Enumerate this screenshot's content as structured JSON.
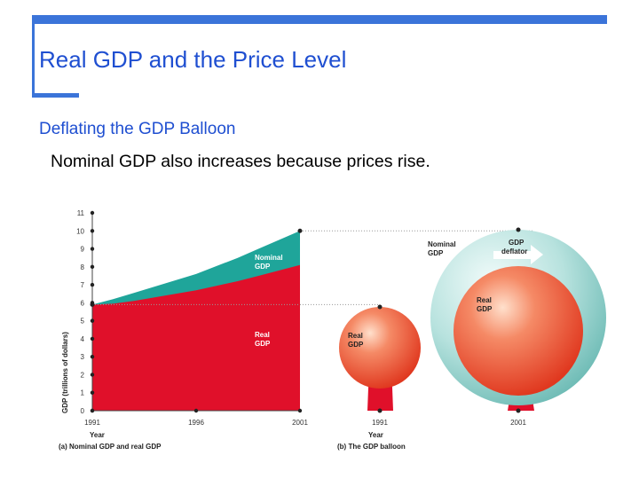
{
  "slide": {
    "title": "Real GDP and the Price Level",
    "subheading": "Deflating the GDP Balloon",
    "bullet": "Nominal GDP also increases because prices rise."
  },
  "colors": {
    "accent": "#3b74d9",
    "title_text": "#1f4fd1",
    "real_gdp": "#e0102a",
    "nominal_gdp": "#1fa59a",
    "balloon_real": "#f06a50",
    "balloon_outer": "#9ed3cf"
  },
  "chart_data": [
    {
      "type": "area",
      "caption": "(a) Nominal GDP and real GDP",
      "xlabel": "Year",
      "ylabel": "GDP (trillions of dollars)",
      "x_ticks": [
        "1991",
        "1996",
        "2001"
      ],
      "y_ticks": [
        "0",
        "1",
        "2",
        "3",
        "4",
        "5",
        "6",
        "7",
        "8",
        "9",
        "10",
        "11"
      ],
      "ylim": [
        0,
        11
      ],
      "xlim": [
        1991,
        2001
      ],
      "x": [
        1991,
        1992,
        1993,
        1994,
        1995,
        1996,
        1997,
        1998,
        1999,
        2000,
        2001
      ],
      "series": [
        {
          "name": "Real GDP",
          "values": [
            5.9,
            5.95,
            6.1,
            6.3,
            6.5,
            6.7,
            6.95,
            7.2,
            7.5,
            7.8,
            8.1
          ]
        },
        {
          "name": "Nominal GDP",
          "values": [
            5.9,
            6.2,
            6.55,
            6.9,
            7.25,
            7.6,
            8.05,
            8.5,
            9.0,
            9.5,
            10.0
          ]
        }
      ]
    },
    {
      "type": "other",
      "caption": "(b) The GDP balloon",
      "xlabel": "Year",
      "x_ticks": [
        "1991",
        "2001"
      ],
      "labels": {
        "real_1991": "Real GDP",
        "nominal_2001": "Nominal GDP",
        "real_2001": "Real GDP",
        "deflator": "GDP deflator"
      }
    }
  ]
}
